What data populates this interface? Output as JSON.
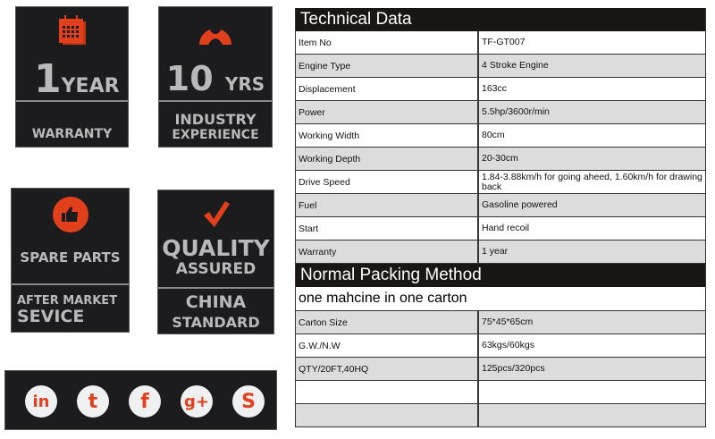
{
  "tiles": {
    "warranty": {
      "big": "1",
      "small": "YEAR",
      "bottom": "WARRANTY",
      "icon": "calendar-icon"
    },
    "experience": {
      "big": "10",
      "small": "YRS",
      "bottom1": "INDUSTRY",
      "bottom2": "EXPERIENCE",
      "icon": "worker-avatar-icon"
    },
    "spare": {
      "top": "SPARE PARTS",
      "bottom1": "AFTER MARKET",
      "bottom2": "SEVICE",
      "icon": "thumbs-up-icon"
    },
    "quality": {
      "top1": "QUALITY",
      "top2": "ASSURED",
      "bottom1": "CHINA",
      "bottom2": "STANDARD",
      "icon": "checkmark-icon"
    }
  },
  "social": [
    {
      "name": "linkedin",
      "glyph": "in"
    },
    {
      "name": "tumblr",
      "glyph": "t"
    },
    {
      "name": "facebook",
      "glyph": "f"
    },
    {
      "name": "google-plus",
      "glyph": "g+"
    },
    {
      "name": "skype",
      "glyph": "S"
    }
  ],
  "accent": "#e2401c",
  "technical": {
    "title": "Technical Data",
    "rows": [
      {
        "k": "Item No",
        "v": "TF-GT007"
      },
      {
        "k": "Engine Type",
        "v": "4 Stroke Engine"
      },
      {
        "k": "Displacement",
        "v": "163cc"
      },
      {
        "k": "Power",
        "v": "5.5hp/3600r/min"
      },
      {
        "k": "Working Width",
        "v": "80cm"
      },
      {
        "k": "Working Depth",
        "v": "20-30cm"
      },
      {
        "k": "Drive Speed",
        "v": "1.84-3.88km/h for going aheed,  1.60km/h for drawing back"
      },
      {
        "k": "Fuel",
        "v": "Gasoline powered"
      },
      {
        "k": "Start",
        "v": "Hand recoil"
      },
      {
        "k": "Warranty",
        "v": "1 year"
      }
    ]
  },
  "packing": {
    "title": "Normal Packing Method",
    "note": "one mahcine in one carton",
    "rows": [
      {
        "k": "Carton Size",
        "v": "75*45*65cm"
      },
      {
        "k": "G.W./N.W",
        "v": "63kgs/60kgs"
      },
      {
        "k": "QTY/20FT,40HQ",
        "v": "125pcs/320pcs"
      },
      {
        "k": "",
        "v": ""
      },
      {
        "k": "",
        "v": ""
      }
    ]
  }
}
